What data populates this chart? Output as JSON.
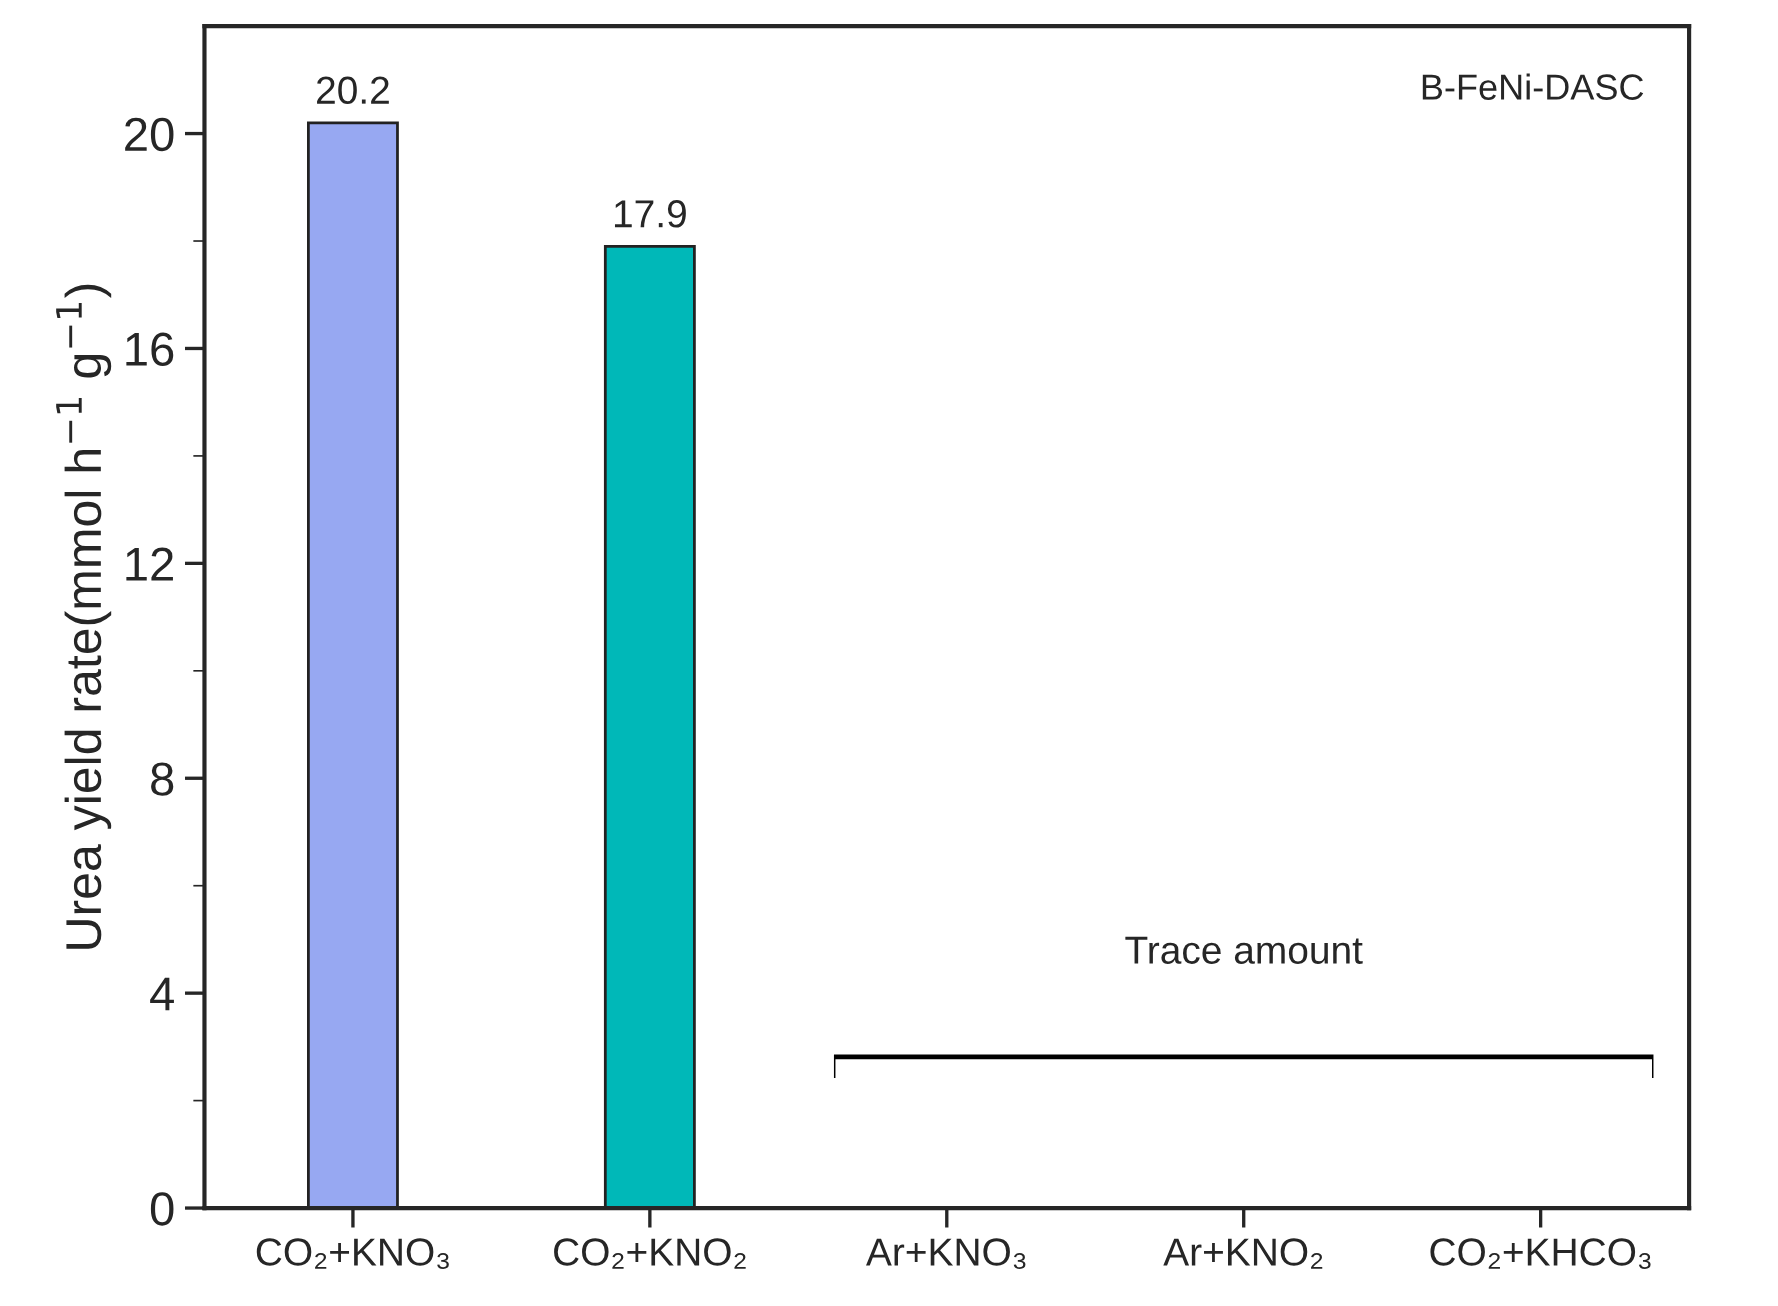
{
  "chart_data": {
    "type": "bar",
    "ylabel": "Urea yield rate(mmol h$^{−1}$ g$^{−1}$)",
    "categories": [
      "CO₂+KNO₃",
      "CO₂+KNO₂",
      "Ar+KNO₃",
      "Ar+KNO₂",
      "CO₂+KHCO₃"
    ],
    "values": [
      20.2,
      17.9,
      null,
      null,
      null
    ],
    "colors": [
      "#97a8f2",
      "#00b8b8",
      "#97a8f2",
      "#97a8f2",
      "#97a8f2"
    ],
    "data_labels": true,
    "ylim": [
      0,
      22
    ],
    "yticks": [
      0,
      4,
      8,
      12,
      16,
      20
    ],
    "grid": false,
    "legend": false,
    "annotations": [
      "B-FeNi-DASC",
      "Trace amount"
    ]
  }
}
